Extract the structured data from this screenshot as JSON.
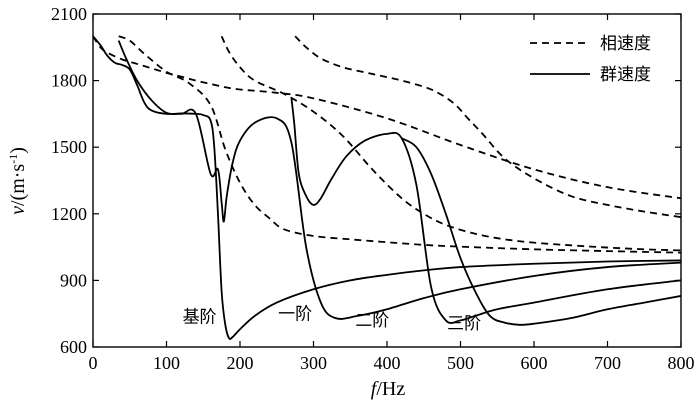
{
  "chart_data": {
    "type": "line",
    "title": "",
    "xlabel": {
      "var": "f",
      "unit": "/Hz"
    },
    "ylabel": {
      "var": "v",
      "unit": "/(m·s",
      "sup": "-1",
      "close": ")"
    },
    "xlim": [
      0,
      800
    ],
    "ylim": [
      600,
      2100
    ],
    "xticks": [
      0,
      100,
      200,
      300,
      400,
      500,
      600,
      700,
      800
    ],
    "yticks": [
      600,
      900,
      1200,
      1500,
      1800,
      2100
    ],
    "grid": false,
    "legend": {
      "position": "top-right",
      "entries": [
        {
          "label": "相速度",
          "style": "dashed"
        },
        {
          "label": "群速度",
          "style": "solid"
        }
      ]
    },
    "mode_labels": [
      {
        "text": "基阶",
        "x": 145,
        "y": 710
      },
      {
        "text": "一阶",
        "x": 275,
        "y": 725
      },
      {
        "text": "二阶",
        "x": 380,
        "y": 695
      },
      {
        "text": "三阶",
        "x": 505,
        "y": 680
      }
    ],
    "series": [
      {
        "name": "相速度 基阶",
        "style": "dashed",
        "x": [
          0,
          10,
          20,
          40,
          60,
          80,
          100,
          120,
          140,
          160,
          180,
          200,
          250,
          300,
          400,
          500,
          600,
          700,
          800
        ],
        "y": [
          2000,
          1950,
          1925,
          1895,
          1875,
          1855,
          1835,
          1818,
          1800,
          1785,
          1770,
          1760,
          1745,
          1720,
          1630,
          1510,
          1400,
          1320,
          1270
        ]
      },
      {
        "name": "相速度 一阶",
        "style": "dashed",
        "x": [
          35,
          50,
          70,
          100,
          130,
          160,
          180,
          200,
          220,
          240,
          260,
          300,
          350,
          400,
          450,
          500,
          600,
          700,
          800
        ],
        "y": [
          2000,
          1980,
          1920,
          1840,
          1790,
          1690,
          1490,
          1340,
          1240,
          1180,
          1130,
          1100,
          1085,
          1072,
          1060,
          1052,
          1040,
          1032,
          1025
        ]
      },
      {
        "name": "相速度 二阶",
        "style": "dashed",
        "x": [
          175,
          185,
          200,
          220,
          260,
          300,
          340,
          380,
          420,
          450,
          480,
          520,
          560,
          600,
          650,
          700,
          750,
          800
        ],
        "y": [
          2000,
          1930,
          1860,
          1800,
          1740,
          1660,
          1550,
          1400,
          1270,
          1200,
          1150,
          1110,
          1085,
          1070,
          1058,
          1048,
          1040,
          1035
        ]
      },
      {
        "name": "相速度 三阶",
        "style": "dashed",
        "x": [
          275,
          290,
          310,
          340,
          380,
          420,
          460,
          490,
          510,
          530,
          560,
          600,
          650,
          700,
          750,
          800
        ],
        "y": [
          2000,
          1950,
          1900,
          1860,
          1830,
          1800,
          1760,
          1700,
          1630,
          1560,
          1450,
          1360,
          1280,
          1240,
          1210,
          1185
        ]
      },
      {
        "name": "群速度 基阶",
        "style": "solid",
        "x": [
          0,
          10,
          20,
          30,
          40,
          50,
          60,
          70,
          80,
          100,
          120,
          140,
          150,
          160,
          165,
          170,
          175,
          180,
          185,
          190,
          200,
          220,
          250,
          300,
          350,
          400,
          450,
          500,
          600,
          700,
          800
        ],
        "y": [
          2000,
          1960,
          1910,
          1880,
          1870,
          1850,
          1780,
          1700,
          1665,
          1650,
          1652,
          1650,
          1645,
          1620,
          1500,
          1200,
          850,
          700,
          640,
          645,
          680,
          740,
          800,
          860,
          900,
          925,
          945,
          960,
          975,
          985,
          990
        ]
      },
      {
        "name": "群速度 一阶",
        "style": "solid",
        "x": [
          35,
          45,
          60,
          80,
          100,
          120,
          140,
          160,
          170,
          175,
          178,
          182,
          190,
          200,
          220,
          250,
          270,
          290,
          310,
          330,
          360,
          400,
          450,
          500,
          600,
          700,
          800
        ],
        "y": [
          1980,
          1900,
          1800,
          1710,
          1655,
          1650,
          1650,
          1380,
          1400,
          1250,
          1165,
          1280,
          1430,
          1530,
          1610,
          1630,
          1520,
          1050,
          800,
          730,
          740,
          770,
          820,
          860,
          920,
          960,
          980
        ]
      },
      {
        "name": "群速度 二阶",
        "style": "solid",
        "x": [
          270,
          274,
          280,
          290,
          300,
          310,
          325,
          345,
          370,
          400,
          420,
          440,
          460,
          480,
          500,
          520,
          550,
          600,
          700,
          800
        ],
        "y": [
          1720,
          1600,
          1380,
          1280,
          1240,
          1270,
          1360,
          1460,
          1530,
          1560,
          1540,
          1330,
          870,
          720,
          720,
          740,
          770,
          800,
          860,
          900
        ]
      },
      {
        "name": "群速度 三阶",
        "style": "solid",
        "x": [
          420,
          440,
          460,
          480,
          500,
          520,
          540,
          560,
          580,
          600,
          650,
          700,
          750,
          800
        ],
        "y": [
          1540,
          1500,
          1380,
          1200,
          1000,
          850,
          740,
          710,
          700,
          705,
          730,
          770,
          800,
          830
        ]
      }
    ]
  }
}
